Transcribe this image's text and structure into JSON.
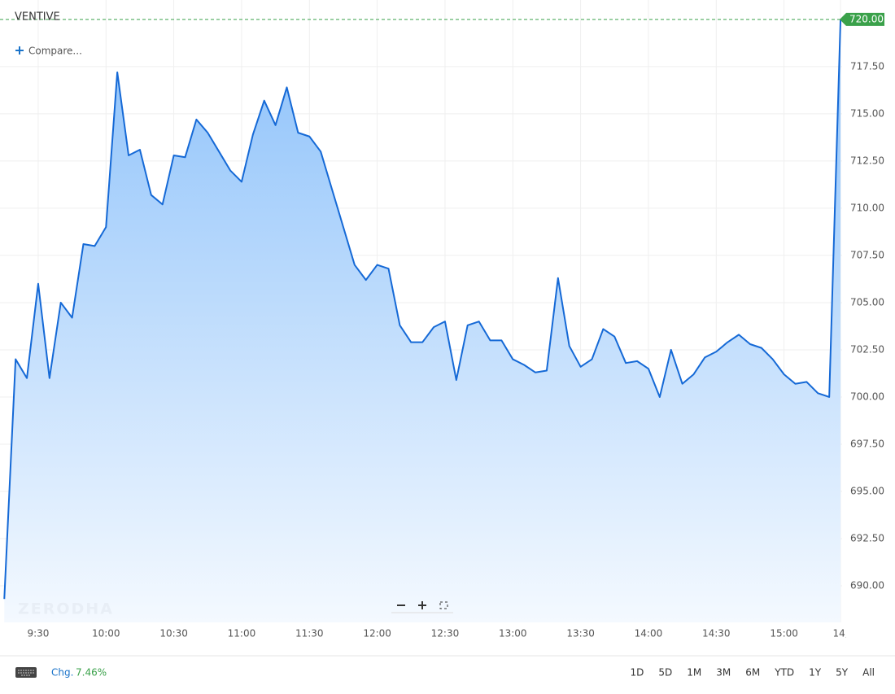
{
  "symbol": "VENTIVE",
  "compare": "Compare...",
  "watermark": "ZERODHA",
  "change_label": "Chg.",
  "change": "7.46%",
  "ranges": [
    "1D",
    "5D",
    "1M",
    "3M",
    "6M",
    "YTD",
    "1Y",
    "5Y",
    "All"
  ],
  "chart_data": {
    "type": "area",
    "x": [
      555,
      560,
      565,
      570,
      575,
      580,
      585,
      590,
      595,
      600,
      605,
      610,
      615,
      620,
      625,
      630,
      635,
      640,
      645,
      650,
      655,
      660,
      665,
      670,
      675,
      680,
      685,
      690,
      695,
      700,
      705,
      710,
      715,
      720,
      725,
      730,
      735,
      740,
      745,
      750,
      755,
      760,
      765,
      770,
      775,
      780,
      785,
      790,
      795,
      800,
      805,
      810,
      815,
      820,
      825,
      830,
      835,
      840,
      845,
      850,
      855,
      860,
      865,
      870,
      875,
      880,
      885,
      890,
      895,
      900,
      905,
      910,
      915,
      920,
      925
    ],
    "series": [
      {
        "color": "#1569d6",
        "values": [
          689.3,
          702,
          701,
          706,
          701,
          705,
          704.2,
          708.1,
          708,
          709,
          717.2,
          712.8,
          713.1,
          710.7,
          710.2,
          712.8,
          712.7,
          714.7,
          714,
          713,
          712,
          711.4,
          713.9,
          715.7,
          714.4,
          716.4,
          714,
          713.8,
          713,
          711,
          709,
          707,
          706.2,
          707,
          706.8,
          703.8,
          702.9,
          702.9,
          703.7,
          704,
          700.9,
          703.8,
          704,
          703,
          703,
          702,
          701.7,
          701.3,
          701.4,
          706.3,
          702.7,
          701.6,
          702,
          703.6,
          703.2,
          701.8,
          701.9,
          701.5,
          700,
          702.5,
          700.7,
          701.2,
          702.1,
          702.4,
          702.9,
          703.3,
          702.8,
          702.6,
          702,
          701.2,
          700.7,
          700.8,
          700.2,
          700,
          720
        ]
      }
    ],
    "last_price": {
      "value": 720,
      "label": "720.00"
    },
    "xlim": [
      553.1,
      925.7
    ],
    "ylim": [
      688.06,
      721.03
    ],
    "xticks": [
      {
        "value": 570,
        "label": "9:30"
      },
      {
        "value": 600,
        "label": "10:00"
      },
      {
        "value": 630,
        "label": "10:30"
      },
      {
        "value": 660,
        "label": "11:00"
      },
      {
        "value": 690,
        "label": "11:30"
      },
      {
        "value": 720,
        "label": "12:00"
      },
      {
        "value": 750,
        "label": "12:30"
      },
      {
        "value": 780,
        "label": "13:00"
      },
      {
        "value": 810,
        "label": "13:30"
      },
      {
        "value": 840,
        "label": "14:00"
      },
      {
        "value": 870,
        "label": "14:30"
      },
      {
        "value": 900,
        "label": "15:00"
      },
      {
        "value": 925,
        "label": "14,"
      }
    ],
    "yticks": [
      {
        "value": 690,
        "label": "690.00"
      },
      {
        "value": 692.5,
        "label": "692.50"
      },
      {
        "value": 695,
        "label": "695.00"
      },
      {
        "value": 697.5,
        "label": "697.50"
      },
      {
        "value": 700,
        "label": "700.00"
      },
      {
        "value": 702.5,
        "label": "702.50"
      },
      {
        "value": 705,
        "label": "705.00"
      },
      {
        "value": 707.5,
        "label": "707.50"
      },
      {
        "value": 710,
        "label": "710.00"
      },
      {
        "value": 712.5,
        "label": "712.50"
      },
      {
        "value": 715,
        "label": "715.00"
      },
      {
        "value": 717.5,
        "label": "717.50"
      }
    ],
    "grid": true
  }
}
